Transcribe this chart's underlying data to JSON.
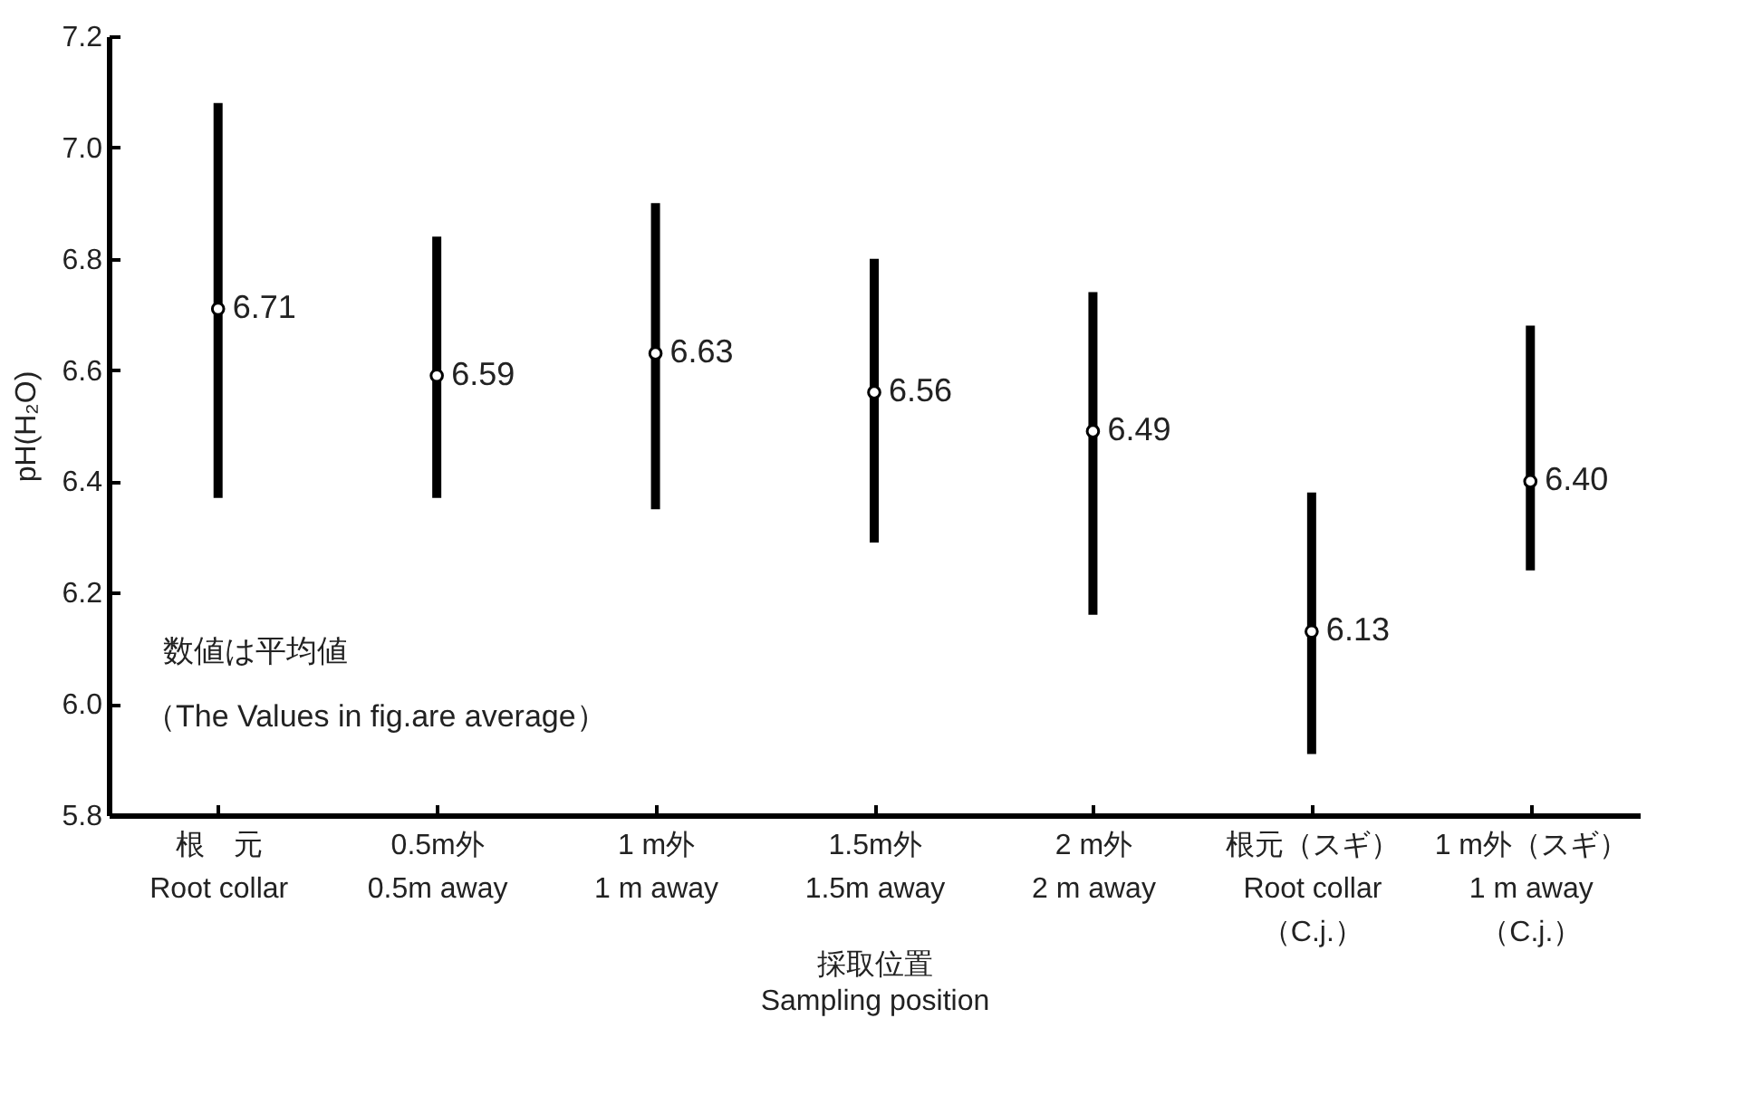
{
  "chart_data": {
    "type": "scatter",
    "ylabel": "pH(H₂O)",
    "xlabel": "採取位置\nSampling position",
    "categories": [
      "根　元\nRoot collar",
      "0.5m外\n0.5m away",
      "1 m外\n1 m away",
      "1.5m外\n1.5m away",
      "2 m外\n2 m away",
      "根元（スギ）\nRoot collar\n（C.j.）",
      "1 m外（スギ）\n1 m away\n（C.j.）"
    ],
    "values": [
      6.71,
      6.59,
      6.63,
      6.56,
      6.49,
      6.13,
      6.4
    ],
    "errors": [
      [
        6.37,
        7.08
      ],
      [
        6.37,
        6.84
      ],
      [
        6.35,
        6.9
      ],
      [
        6.29,
        6.8
      ],
      [
        6.16,
        6.74
      ],
      [
        5.91,
        6.38
      ],
      [
        6.24,
        6.68
      ]
    ],
    "value_labels": [
      "6.71",
      "6.59",
      "6.63",
      "6.56",
      "6.49",
      "6.13",
      "6.40"
    ],
    "color": "#000000",
    "marker": "circle",
    "ylim": [
      5.8,
      7.2
    ],
    "yticks": [
      {
        "value": 5.8,
        "label": "5.8"
      },
      {
        "value": 6,
        "label": "6.0"
      },
      {
        "value": 6.2,
        "label": "6.2"
      },
      {
        "value": 6.4,
        "label": "6.4"
      },
      {
        "value": 6.6,
        "label": "6.6"
      },
      {
        "value": 6.8,
        "label": "6.8"
      },
      {
        "value": 7,
        "label": "7.0"
      },
      {
        "value": 7.2,
        "label": "7.2"
      }
    ],
    "grid": false,
    "annotations": [
      "数値は平均値",
      "（The Values in fig.are average）"
    ]
  }
}
